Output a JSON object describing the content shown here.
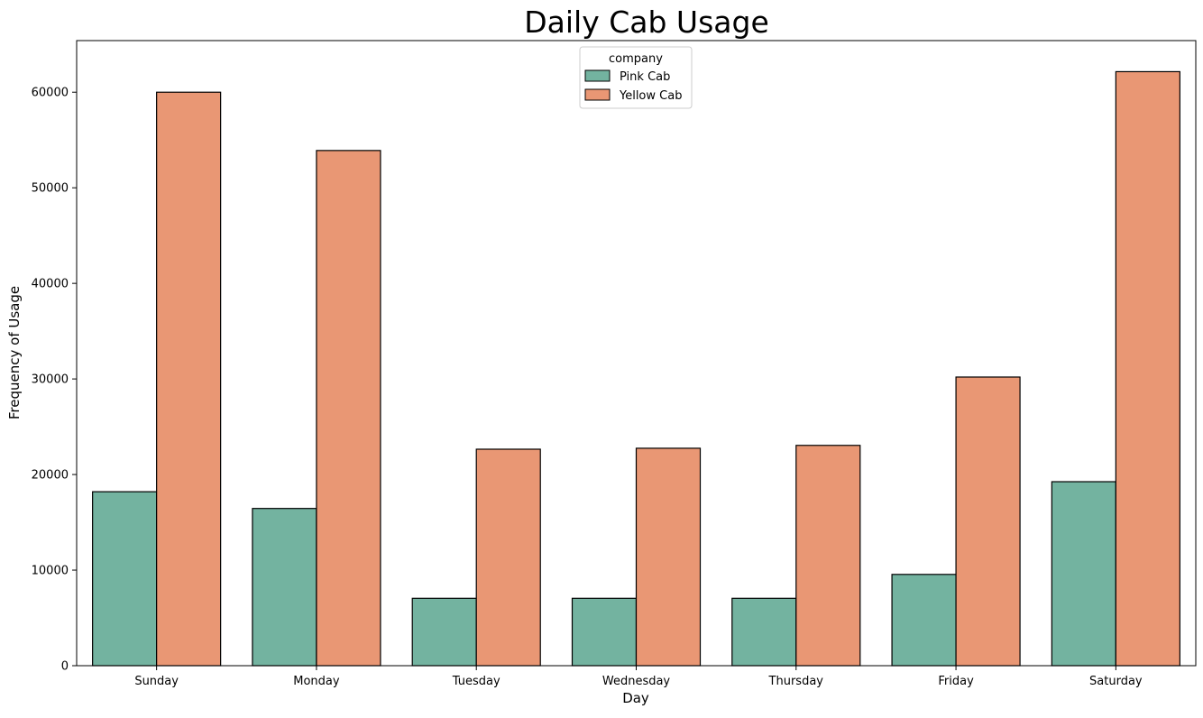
{
  "chart_data": {
    "type": "bar",
    "title": "Daily Cab Usage",
    "xlabel": "Day",
    "ylabel": "Frequency of Usage",
    "categories": [
      "Sunday",
      "Monday",
      "Tuesday",
      "Wednesday",
      "Thursday",
      "Friday",
      "Saturday"
    ],
    "series": [
      {
        "name": "Pink Cab",
        "color": "#73b3a0",
        "values": [
          18200,
          16450,
          7050,
          7050,
          7050,
          9550,
          19250
        ]
      },
      {
        "name": "Yellow Cab",
        "color": "#e99774",
        "values": [
          60000,
          53900,
          22650,
          22750,
          23050,
          30200,
          62150
        ]
      }
    ],
    "ylim": [
      0,
      65400
    ],
    "yticks": [
      0,
      10000,
      20000,
      30000,
      40000,
      50000,
      60000
    ],
    "legend": {
      "title": "company",
      "placement": "upper-center"
    },
    "grid": false
  }
}
